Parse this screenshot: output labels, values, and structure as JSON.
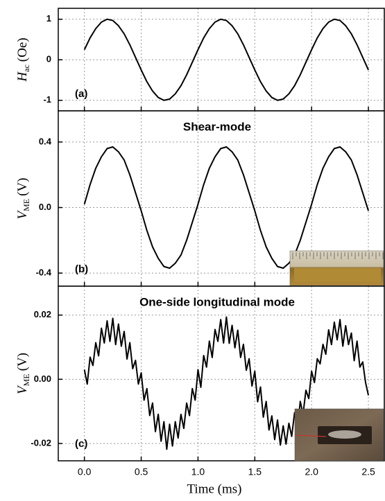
{
  "chart_data": [
    {
      "type": "line",
      "annotation": "(a)",
      "ylabel": {
        "main": "H",
        "sub": "ac",
        "unit": "(Oe)"
      },
      "xlim": [
        -0.23,
        2.64
      ],
      "xticks": [
        0,
        0.5,
        1,
        1.5,
        2,
        2.5
      ],
      "ylim": [
        -1.26,
        1.27
      ],
      "yticks": [
        -1,
        0,
        1
      ],
      "grid": true,
      "color": "#000000",
      "x": [
        0,
        0.05,
        0.1,
        0.15,
        0.2,
        0.25,
        0.3,
        0.35,
        0.4,
        0.45,
        0.5,
        0.55,
        0.6,
        0.65,
        0.7,
        0.75,
        0.8,
        0.85,
        0.9,
        0.95,
        1,
        1.05,
        1.1,
        1.15,
        1.2,
        1.25,
        1.3,
        1.35,
        1.4,
        1.45,
        1.5,
        1.55,
        1.6,
        1.65,
        1.7,
        1.75,
        1.8,
        1.85,
        1.9,
        1.95,
        2,
        2.05,
        2.1,
        2.15,
        2.2,
        2.25,
        2.3,
        2.35,
        2.4,
        2.45,
        2.5
      ],
      "values": [
        0.25,
        0.54,
        0.77,
        0.93,
        1.0,
        0.97,
        0.84,
        0.64,
        0.37,
        0.06,
        -0.25,
        -0.54,
        -0.77,
        -0.93,
        -1.0,
        -0.97,
        -0.84,
        -0.64,
        -0.37,
        -0.06,
        0.25,
        0.54,
        0.77,
        0.93,
        1.0,
        0.97,
        0.84,
        0.64,
        0.37,
        0.06,
        -0.25,
        -0.54,
        -0.77,
        -0.93,
        -1.0,
        -0.97,
        -0.84,
        -0.64,
        -0.37,
        -0.06,
        0.25,
        0.54,
        0.77,
        0.93,
        1.0,
        0.97,
        0.84,
        0.64,
        0.37,
        0.06,
        -0.25
      ]
    },
    {
      "type": "line",
      "title": "Shear-mode",
      "annotation": "(b)",
      "ylabel": {
        "main": "V",
        "sub": "ME",
        "unit": "(V)"
      },
      "xlim": [
        -0.23,
        2.64
      ],
      "xticks": [
        0,
        0.5,
        1,
        1.5,
        2,
        2.5
      ],
      "ylim": [
        -0.48,
        0.59
      ],
      "yticks": [
        -0.4,
        {
          "value": 0,
          "label": "0.0"
        },
        0.4
      ],
      "grid": true,
      "color": "#000000",
      "x": [
        0,
        0.05,
        0.1,
        0.15,
        0.2,
        0.25,
        0.3,
        0.35,
        0.4,
        0.45,
        0.5,
        0.55,
        0.6,
        0.65,
        0.7,
        0.75,
        0.8,
        0.85,
        0.9,
        0.95,
        1,
        1.05,
        1.1,
        1.15,
        1.2,
        1.25,
        1.3,
        1.35,
        1.4,
        1.45,
        1.5,
        1.55,
        1.6,
        1.65,
        1.7,
        1.75,
        1.8,
        1.85,
        1.9,
        1.95,
        2,
        2.05,
        2.1,
        2.15,
        2.2,
        2.25,
        2.3,
        2.35,
        2.4,
        2.45,
        2.5
      ],
      "values": [
        0.02,
        0.14,
        0.24,
        0.31,
        0.36,
        0.37,
        0.34,
        0.29,
        0.2,
        0.09,
        -0.02,
        -0.14,
        -0.24,
        -0.31,
        -0.36,
        -0.37,
        -0.34,
        -0.29,
        -0.2,
        -0.09,
        0.02,
        0.14,
        0.24,
        0.31,
        0.36,
        0.37,
        0.34,
        0.29,
        0.2,
        0.09,
        -0.02,
        -0.14,
        -0.24,
        -0.31,
        -0.36,
        -0.37,
        -0.34,
        -0.29,
        -0.2,
        -0.09,
        0.02,
        0.14,
        0.24,
        0.31,
        0.36,
        0.37,
        0.34,
        0.29,
        0.2,
        0.09,
        -0.02
      ]
    },
    {
      "type": "line",
      "title": "One-side longitudinal mode",
      "annotation": "(c)",
      "ylabel": {
        "main": "V",
        "sub": "ME",
        "unit": "(V)"
      },
      "xlabel": "Time (ms)",
      "xlim": [
        -0.23,
        2.64
      ],
      "xticks": [
        {
          "value": 0,
          "label": "0.0"
        },
        0.5,
        {
          "value": 1,
          "label": "1.0"
        },
        1.5,
        {
          "value": 2,
          "label": "2.0"
        },
        2.5
      ],
      "ylim": [
        -0.0254,
        0.029
      ],
      "yticks": [
        -0.02,
        {
          "value": 0,
          "label": "0.00"
        },
        0.02
      ],
      "grid": true,
      "color": "#000000",
      "x": [
        0,
        0.025,
        0.05,
        0.075,
        0.1,
        0.125,
        0.15,
        0.175,
        0.2,
        0.225,
        0.25,
        0.275,
        0.3,
        0.325,
        0.35,
        0.375,
        0.4,
        0.425,
        0.45,
        0.475,
        0.5,
        0.525,
        0.55,
        0.575,
        0.6,
        0.625,
        0.65,
        0.675,
        0.7,
        0.725,
        0.75,
        0.775,
        0.8,
        0.825,
        0.85,
        0.875,
        0.9,
        0.925,
        0.95,
        0.975,
        1,
        1.025,
        1.05,
        1.075,
        1.1,
        1.125,
        1.15,
        1.175,
        1.2,
        1.225,
        1.25,
        1.275,
        1.3,
        1.325,
        1.35,
        1.375,
        1.4,
        1.425,
        1.45,
        1.475,
        1.5,
        1.525,
        1.55,
        1.575,
        1.6,
        1.625,
        1.65,
        1.675,
        1.7,
        1.725,
        1.75,
        1.775,
        1.8,
        1.825,
        1.85,
        1.875,
        1.9,
        1.925,
        1.95,
        1.975,
        2,
        2.025,
        2.05,
        2.075,
        2.1,
        2.125,
        2.15,
        2.175,
        2.2,
        2.225,
        2.25,
        2.275,
        2.3,
        2.325,
        2.35,
        2.375,
        2.4,
        2.425,
        2.45,
        2.475,
        2.5
      ],
      "values": [
        0.003,
        -0.0015,
        0.0069,
        0.0043,
        0.0114,
        0.0073,
        0.0159,
        0.0113,
        0.0182,
        0.0118,
        0.019,
        0.0108,
        0.0172,
        0.0103,
        0.0149,
        0.0063,
        0.0114,
        0.0033,
        0.0059,
        -0.0015,
        0.002,
        -0.0065,
        -0.0029,
        -0.0113,
        -0.0074,
        -0.0163,
        -0.0109,
        -0.0193,
        -0.0132,
        -0.0218,
        -0.014,
        -0.0208,
        -0.0132,
        -0.0183,
        -0.0109,
        -0.0153,
        -0.0074,
        -0.0113,
        -0.0029,
        -0.0065,
        0.003,
        -0.0025,
        0.0074,
        0.0038,
        0.0119,
        0.0068,
        0.0155,
        0.0118,
        0.0186,
        0.0113,
        0.0194,
        0.0112,
        0.0168,
        0.0098,
        0.0153,
        0.0068,
        0.0109,
        0.0028,
        0.0064,
        -0.0021,
        0.0025,
        -0.007,
        -0.0024,
        -0.0118,
        -0.0069,
        -0.0158,
        -0.0114,
        -0.0188,
        -0.0127,
        -0.0205,
        -0.0145,
        -0.0202,
        -0.0137,
        -0.0178,
        -0.0104,
        -0.0158,
        -0.0069,
        -0.0108,
        -0.0034,
        -0.006,
        0.0025,
        -0.001,
        0.0064,
        0.0048,
        0.0109,
        0.0078,
        0.0154,
        0.0108,
        0.0178,
        0.0123,
        0.0186,
        0.0103,
        0.0167,
        0.0108,
        0.0144,
        0.0058,
        0.0119,
        0.0038,
        0.0054,
        -0.001,
        -0.005
      ]
    }
  ]
}
